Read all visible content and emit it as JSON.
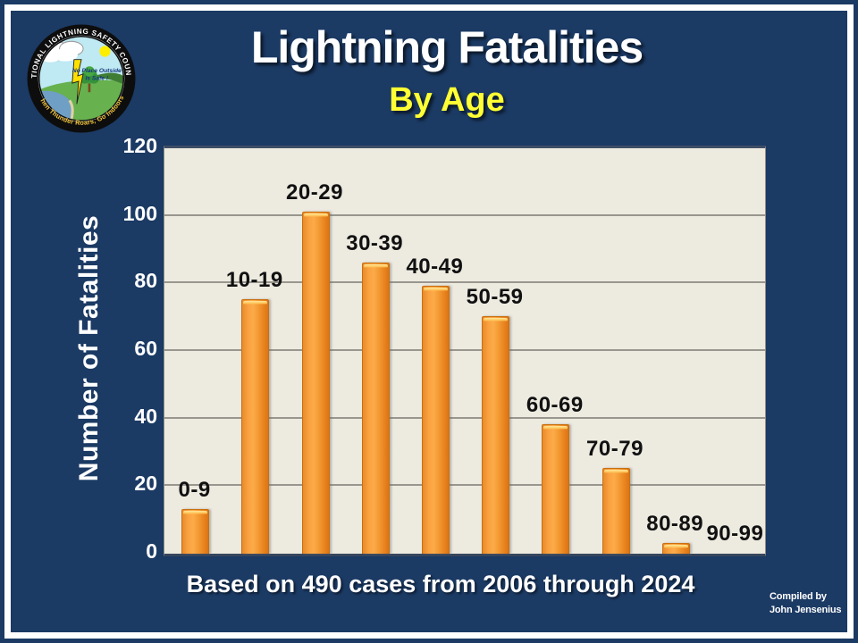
{
  "header": {
    "title": "Lightning Fatalities",
    "subtitle": "By Age"
  },
  "logo": {
    "name": "national-lightning-safety-council-seal",
    "ring_text_top": "NATIONAL LIGHTNING SAFETY COUNCIL",
    "ring_text_bottom": "When Thunder Roars, Go Indoors!",
    "center_text_line1": "No Place Outside",
    "center_text_line2": "Is Safe !"
  },
  "chart_data": {
    "type": "bar",
    "title": "Lightning Fatalities By Age",
    "categories": [
      "0-9",
      "10-19",
      "20-29",
      "30-39",
      "40-49",
      "50-59",
      "60-69",
      "70-79",
      "80-89",
      "90-99"
    ],
    "values": [
      13,
      75,
      101,
      86,
      79,
      70,
      38,
      25,
      3,
      0
    ],
    "xlabel": "",
    "ylabel": "Number of Fatalities",
    "ylim": [
      0,
      120
    ],
    "yticks": [
      0,
      20,
      40,
      60,
      80,
      100,
      120
    ],
    "grid": true,
    "legend": "none",
    "bar_color": "#F79B2E",
    "plot_background": "#EDEAE0",
    "page_background": "#1B3A64"
  },
  "footer": {
    "caption": "Based on 490 cases from 2006 through 2024",
    "credit_line1": "Compiled by",
    "credit_line2": "John Jensenius"
  }
}
